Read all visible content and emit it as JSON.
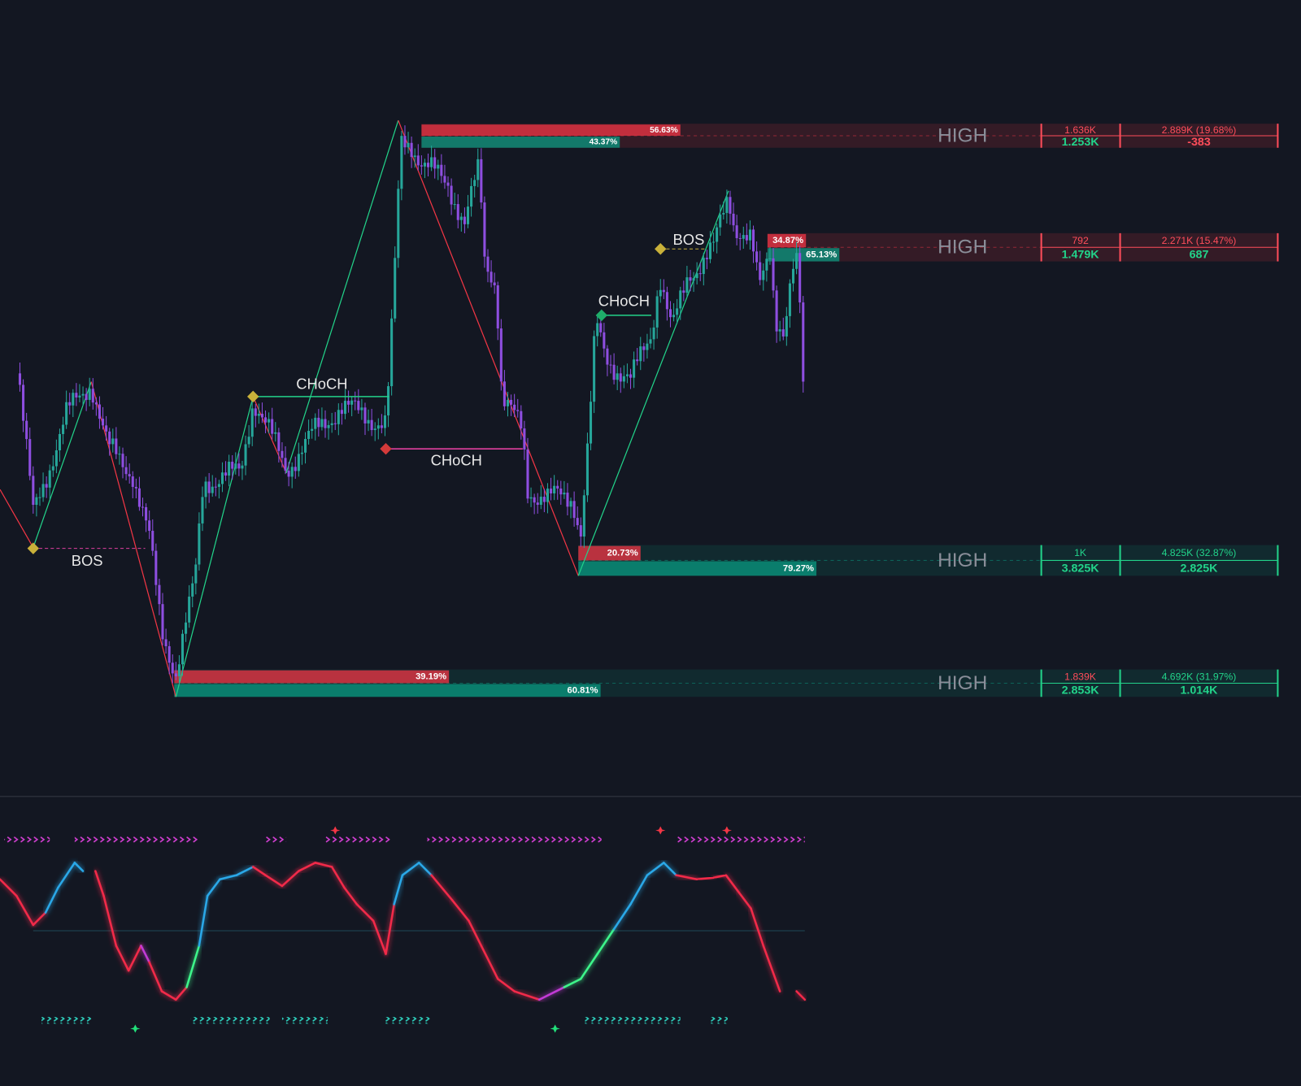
{
  "annotations": [
    "CHoCH",
    "CHoCH",
    "BOS",
    "CHoCH",
    "BOS"
  ],
  "zones": [
    {
      "label": "HIGH",
      "sell": {
        "value": 56.63,
        "label": "56.63%"
      },
      "buy": {
        "value": 43.37,
        "label": "43.37%"
      },
      "sell_volume": "1.636K",
      "buy_volume": "1.253K",
      "total": "2.889K (19.68%)",
      "delta": "-383"
    },
    {
      "label": "HIGH",
      "sell": {
        "value": 34.87,
        "label": "34.87%"
      },
      "buy": {
        "value": 65.13,
        "label": "65.13%"
      },
      "sell_volume": "792",
      "buy_volume": "1.479K",
      "total": "2.271K (15.47%)",
      "delta": "687"
    },
    {
      "label": "HIGH",
      "sell": {
        "value": 20.73,
        "label": "20.73%"
      },
      "buy": {
        "value": 79.27,
        "label": "79.27%"
      },
      "sell_volume": "1K",
      "buy_volume": "3.825K",
      "total": "4.825K (32.87%)",
      "delta": "2.825K"
    },
    {
      "label": "HIGH",
      "sell": {
        "value": 39.19,
        "label": "39.19%"
      },
      "buy": {
        "value": 60.81,
        "label": "60.81%"
      },
      "sell_volume": "1.839K",
      "buy_volume": "2.853K",
      "total": "4.692K (31.97%)",
      "delta": "1.014K"
    }
  ]
}
